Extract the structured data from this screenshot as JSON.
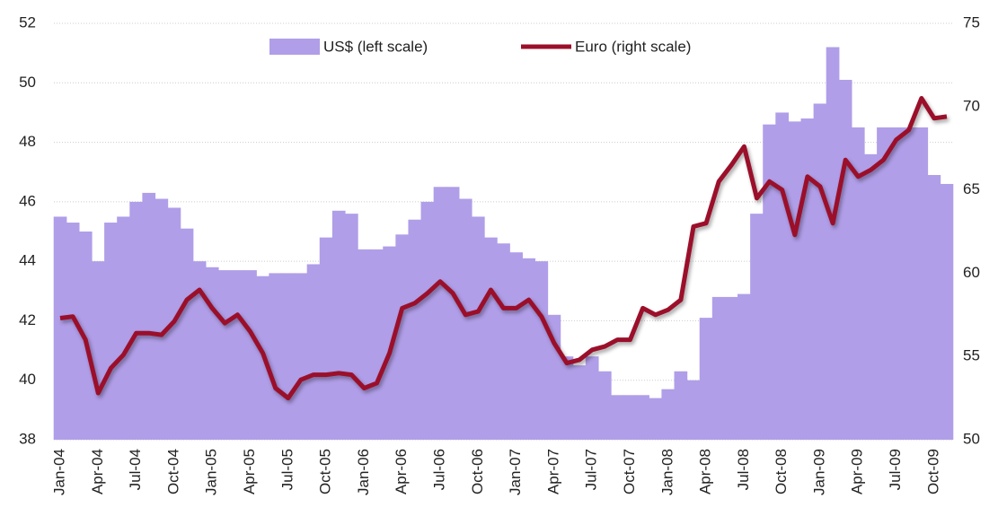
{
  "chart_data": {
    "type": "area-line",
    "categories": [
      "Jan-04",
      null,
      null,
      "Apr-04",
      null,
      null,
      "Jul-04",
      null,
      null,
      "Oct-04",
      null,
      null,
      "Jan-05",
      null,
      null,
      "Apr-05",
      null,
      null,
      "Jul-05",
      null,
      null,
      "Oct-05",
      null,
      null,
      "Jan-06",
      null,
      null,
      "Apr-06",
      null,
      null,
      "Jul-06",
      null,
      null,
      "Oct-06",
      null,
      null,
      "Jan-07",
      null,
      null,
      "Apr-07",
      null,
      null,
      "Jul-07",
      null,
      null,
      "Oct-07",
      null,
      null,
      "Jan-08",
      null,
      null,
      "Apr-08",
      null,
      null,
      "Jul-08",
      null,
      null,
      "Oct-08",
      null,
      null,
      "Jan-09",
      null,
      null,
      "Apr-09",
      null,
      null,
      "Jul-09",
      null,
      null,
      "Oct-09",
      null
    ],
    "series": [
      {
        "name": "US$ (left scale)",
        "color": "#b09ee8",
        "kind": "area",
        "axis": "y",
        "values": [
          45.5,
          45.3,
          45.0,
          44.0,
          45.3,
          45.5,
          46.0,
          46.3,
          46.1,
          45.8,
          45.1,
          44.0,
          43.8,
          43.7,
          43.7,
          43.7,
          43.5,
          43.6,
          43.6,
          43.6,
          43.9,
          44.8,
          45.7,
          45.6,
          44.4,
          44.4,
          44.5,
          44.9,
          45.4,
          46.0,
          46.5,
          46.5,
          46.1,
          45.5,
          44.8,
          44.6,
          44.3,
          44.1,
          44.0,
          42.2,
          40.8,
          40.5,
          40.8,
          40.3,
          39.5,
          39.5,
          39.5,
          39.4,
          39.7,
          40.3,
          40.0,
          42.1,
          42.8,
          42.8,
          42.9,
          45.6,
          48.6,
          49.0,
          48.7,
          48.8,
          49.3,
          51.2,
          50.1,
          48.5,
          47.6,
          48.5,
          48.5,
          48.5,
          48.5,
          46.9,
          46.6
        ]
      },
      {
        "name": "Euro (right scale)",
        "color": "#9b0f2a",
        "kind": "line",
        "axis": "y2",
        "values": [
          57.3,
          57.4,
          56.0,
          52.8,
          54.3,
          55.1,
          56.4,
          56.4,
          56.3,
          57.1,
          58.4,
          59.0,
          57.9,
          57.0,
          57.5,
          56.5,
          55.2,
          53.1,
          52.5,
          53.6,
          53.9,
          53.9,
          54.0,
          53.9,
          53.1,
          53.4,
          55.2,
          57.9,
          58.2,
          58.8,
          59.5,
          58.8,
          57.5,
          57.7,
          59.0,
          57.9,
          57.9,
          58.4,
          57.4,
          55.8,
          54.6,
          54.8,
          55.4,
          55.6,
          56.0,
          56.0,
          57.9,
          57.5,
          57.8,
          58.4,
          62.8,
          63.0,
          65.5,
          66.5,
          67.6,
          64.5,
          65.5,
          65.0,
          62.3,
          65.8,
          65.2,
          63.0,
          66.8,
          65.8,
          66.2,
          66.8,
          68.0,
          68.6,
          70.5,
          69.3,
          69.4
        ]
      }
    ],
    "ylim": [
      38,
      52
    ],
    "yticks": [
      38,
      40,
      42,
      44,
      46,
      48,
      50,
      52
    ],
    "y2lim": [
      50,
      75
    ],
    "y2ticks": [
      50,
      55,
      60,
      65,
      70,
      75
    ],
    "grid": true,
    "legend": "top"
  }
}
